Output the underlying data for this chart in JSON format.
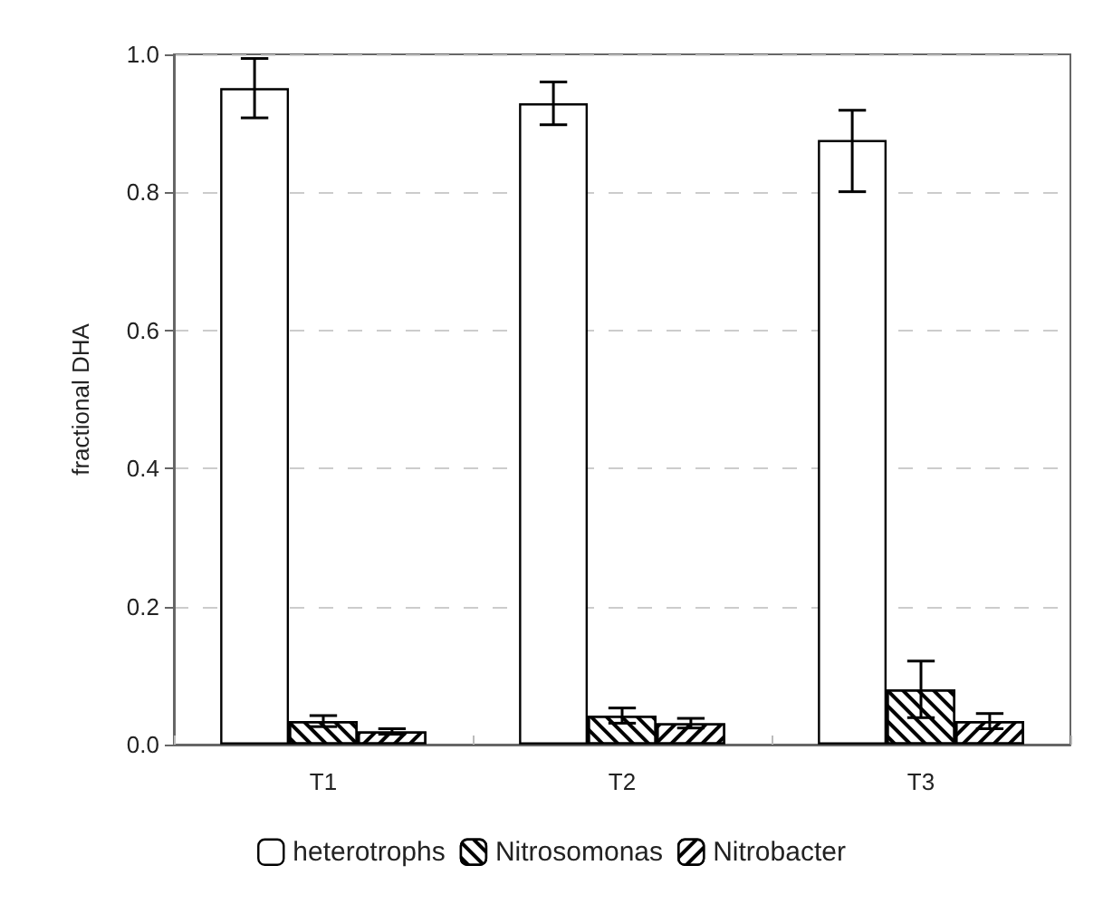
{
  "chart_data": {
    "type": "bar",
    "ylabel": "fractional DHA",
    "categories": [
      "T1",
      "T2",
      "T3"
    ],
    "series": [
      {
        "name": "heterotrophs",
        "color": "#ffffff",
        "values": [
          0.951,
          0.929,
          0.876
        ],
        "errors": [
          0.043,
          0.031,
          [
            0.801,
            0.919
          ]
        ]
      },
      {
        "name": "Nitrosomonas",
        "color": "#000000",
        "values": [
          0.034,
          0.042,
          0.08
        ],
        "errors": [
          0.008,
          0.011,
          0.041
        ]
      },
      {
        "name": "Nitrobacter",
        "color": "#000000",
        "values": [
          0.019,
          0.031,
          0.034
        ],
        "errors": [
          0.004,
          0.007,
          0.011
        ]
      }
    ],
    "ylim": [
      0,
      1
    ],
    "yticks": [
      {
        "value": 0,
        "label": "0.0"
      },
      0.2,
      0.4,
      0.6,
      0.8,
      {
        "value": 1,
        "label": "1.0"
      }
    ],
    "grid": "y",
    "legend": "bottom"
  }
}
